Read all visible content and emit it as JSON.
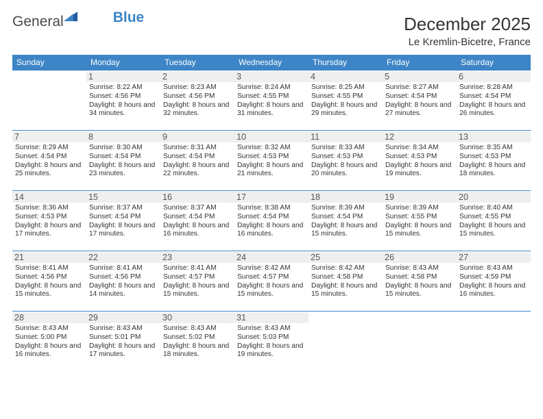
{
  "logo": {
    "text1": "General",
    "text2": "Blue"
  },
  "title": "December 2025",
  "subtitle": "Le Kremlin-Bicetre, France",
  "colors": {
    "header_bg": "#3d85c6",
    "header_text": "#ffffff",
    "row_border": "#3d85c6",
    "daynum_bg": "#efefef",
    "daynum_text": "#555555",
    "info_text": "#333333",
    "logo_gray": "#4a4a4a",
    "logo_blue": "#3d85c6",
    "page_bg": "#ffffff"
  },
  "dayHeaders": [
    "Sunday",
    "Monday",
    "Tuesday",
    "Wednesday",
    "Thursday",
    "Friday",
    "Saturday"
  ],
  "weeks": [
    [
      null,
      {
        "n": "1",
        "sr": "8:22 AM",
        "ss": "4:56 PM",
        "dl": "8 hours and 34 minutes."
      },
      {
        "n": "2",
        "sr": "8:23 AM",
        "ss": "4:56 PM",
        "dl": "8 hours and 32 minutes."
      },
      {
        "n": "3",
        "sr": "8:24 AM",
        "ss": "4:55 PM",
        "dl": "8 hours and 31 minutes."
      },
      {
        "n": "4",
        "sr": "8:25 AM",
        "ss": "4:55 PM",
        "dl": "8 hours and 29 minutes."
      },
      {
        "n": "5",
        "sr": "8:27 AM",
        "ss": "4:54 PM",
        "dl": "8 hours and 27 minutes."
      },
      {
        "n": "6",
        "sr": "8:28 AM",
        "ss": "4:54 PM",
        "dl": "8 hours and 26 minutes."
      }
    ],
    [
      {
        "n": "7",
        "sr": "8:29 AM",
        "ss": "4:54 PM",
        "dl": "8 hours and 25 minutes."
      },
      {
        "n": "8",
        "sr": "8:30 AM",
        "ss": "4:54 PM",
        "dl": "8 hours and 23 minutes."
      },
      {
        "n": "9",
        "sr": "8:31 AM",
        "ss": "4:54 PM",
        "dl": "8 hours and 22 minutes."
      },
      {
        "n": "10",
        "sr": "8:32 AM",
        "ss": "4:53 PM",
        "dl": "8 hours and 21 minutes."
      },
      {
        "n": "11",
        "sr": "8:33 AM",
        "ss": "4:53 PM",
        "dl": "8 hours and 20 minutes."
      },
      {
        "n": "12",
        "sr": "8:34 AM",
        "ss": "4:53 PM",
        "dl": "8 hours and 19 minutes."
      },
      {
        "n": "13",
        "sr": "8:35 AM",
        "ss": "4:53 PM",
        "dl": "8 hours and 18 minutes."
      }
    ],
    [
      {
        "n": "14",
        "sr": "8:36 AM",
        "ss": "4:53 PM",
        "dl": "8 hours and 17 minutes."
      },
      {
        "n": "15",
        "sr": "8:37 AM",
        "ss": "4:54 PM",
        "dl": "8 hours and 17 minutes."
      },
      {
        "n": "16",
        "sr": "8:37 AM",
        "ss": "4:54 PM",
        "dl": "8 hours and 16 minutes."
      },
      {
        "n": "17",
        "sr": "8:38 AM",
        "ss": "4:54 PM",
        "dl": "8 hours and 16 minutes."
      },
      {
        "n": "18",
        "sr": "8:39 AM",
        "ss": "4:54 PM",
        "dl": "8 hours and 15 minutes."
      },
      {
        "n": "19",
        "sr": "8:39 AM",
        "ss": "4:55 PM",
        "dl": "8 hours and 15 minutes."
      },
      {
        "n": "20",
        "sr": "8:40 AM",
        "ss": "4:55 PM",
        "dl": "8 hours and 15 minutes."
      }
    ],
    [
      {
        "n": "21",
        "sr": "8:41 AM",
        "ss": "4:56 PM",
        "dl": "8 hours and 15 minutes."
      },
      {
        "n": "22",
        "sr": "8:41 AM",
        "ss": "4:56 PM",
        "dl": "8 hours and 14 minutes."
      },
      {
        "n": "23",
        "sr": "8:41 AM",
        "ss": "4:57 PM",
        "dl": "8 hours and 15 minutes."
      },
      {
        "n": "24",
        "sr": "8:42 AM",
        "ss": "4:57 PM",
        "dl": "8 hours and 15 minutes."
      },
      {
        "n": "25",
        "sr": "8:42 AM",
        "ss": "4:58 PM",
        "dl": "8 hours and 15 minutes."
      },
      {
        "n": "26",
        "sr": "8:43 AM",
        "ss": "4:58 PM",
        "dl": "8 hours and 15 minutes."
      },
      {
        "n": "27",
        "sr": "8:43 AM",
        "ss": "4:59 PM",
        "dl": "8 hours and 16 minutes."
      }
    ],
    [
      {
        "n": "28",
        "sr": "8:43 AM",
        "ss": "5:00 PM",
        "dl": "8 hours and 16 minutes."
      },
      {
        "n": "29",
        "sr": "8:43 AM",
        "ss": "5:01 PM",
        "dl": "8 hours and 17 minutes."
      },
      {
        "n": "30",
        "sr": "8:43 AM",
        "ss": "5:02 PM",
        "dl": "8 hours and 18 minutes."
      },
      {
        "n": "31",
        "sr": "8:43 AM",
        "ss": "5:03 PM",
        "dl": "8 hours and 19 minutes."
      },
      null,
      null,
      null
    ]
  ],
  "labels": {
    "sunrise": "Sunrise:",
    "sunset": "Sunset:",
    "daylight": "Daylight:"
  }
}
